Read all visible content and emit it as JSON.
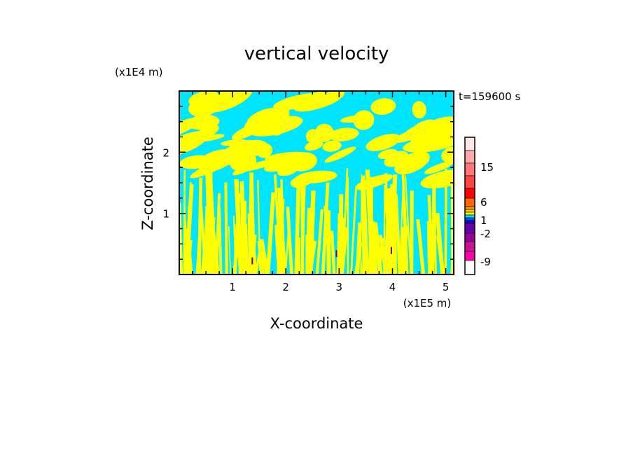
{
  "chart_data": {
    "type": "heatmap",
    "title": "vertical velocity",
    "xlabel": "X-coordinate",
    "ylabel": "Z-coordinate",
    "x_unit": "(x1E5 m)",
    "y_unit": "(x1E4 m)",
    "time_label": "t=159600 s",
    "xlim": [
      0,
      5.15
    ],
    "ylim": [
      0,
      3.0
    ],
    "x_ticks": [
      "1",
      "2",
      "3",
      "4",
      "5"
    ],
    "y_ticks": [
      "1",
      "2"
    ],
    "colorbar": {
      "tick_labels": [
        "15",
        "6",
        "1",
        "-2",
        "-9"
      ],
      "levels": [
        {
          "color": "#ff00aa"
        },
        {
          "color": "#cc1199"
        },
        {
          "color": "#990099"
        },
        {
          "color": "#6600aa"
        },
        {
          "color": "#2200cc"
        },
        {
          "color": "#0055ff"
        },
        {
          "color": "#00e5ff"
        },
        {
          "color": "#ffff00"
        },
        {
          "color": "#ffcc00"
        },
        {
          "color": "#ff9900"
        },
        {
          "color": "#ff6600"
        },
        {
          "color": "#ff0000"
        },
        {
          "color": "#ff4444"
        },
        {
          "color": "#ff7777"
        },
        {
          "color": "#ffaaaa"
        },
        {
          "color": "#ffe8e8"
        }
      ]
    },
    "dominant_colors": {
      "positive": "#ffff00",
      "negative": "#00e5ff"
    }
  }
}
